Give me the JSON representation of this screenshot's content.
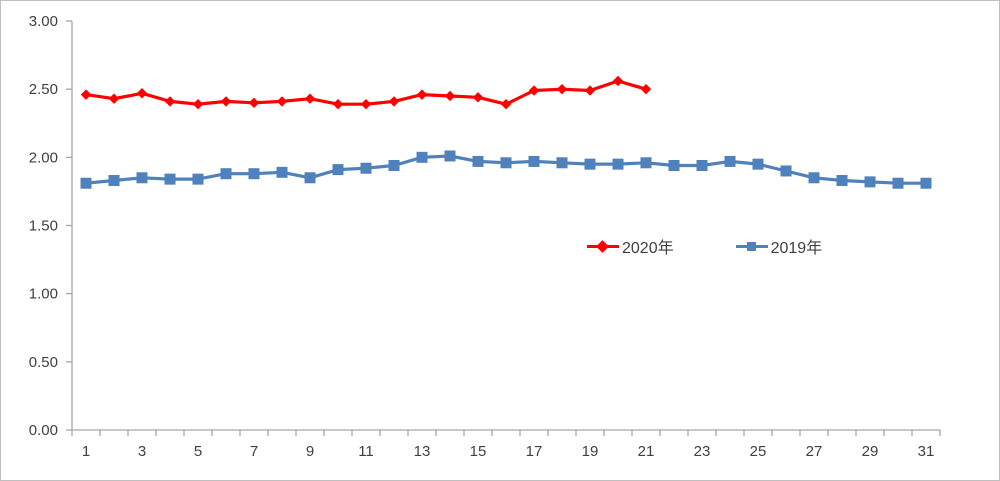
{
  "chart": {
    "title": "",
    "legend_items": [
      "2020年",
      "2019年"
    ]
  },
  "chart_data": {
    "type": "line",
    "x": [
      1,
      2,
      3,
      4,
      5,
      6,
      7,
      8,
      9,
      10,
      11,
      12,
      13,
      14,
      15,
      16,
      17,
      18,
      19,
      20,
      21,
      22,
      23,
      24,
      25,
      26,
      27,
      28,
      29,
      30,
      31
    ],
    "x_label_every": 2,
    "ylim": [
      0,
      3
    ],
    "y_tick_step": 0.5,
    "y_tick_labels": [
      "3.00",
      "2.50",
      "2.00",
      "1.50",
      "1.00",
      "0.50",
      "0.00"
    ],
    "grid": false,
    "legend_position": "inside-center-right",
    "series": [
      {
        "name": "2020年",
        "color": "#FF0000",
        "marker": "diamond",
        "values": [
          2.46,
          2.43,
          2.47,
          2.41,
          2.39,
          2.41,
          2.4,
          2.41,
          2.43,
          2.39,
          2.39,
          2.41,
          2.46,
          2.45,
          2.44,
          2.39,
          2.49,
          2.5,
          2.49,
          2.56,
          2.5
        ]
      },
      {
        "name": "2019年",
        "color": "#4F81BD",
        "marker": "square",
        "values": [
          1.81,
          1.83,
          1.85,
          1.84,
          1.84,
          1.88,
          1.88,
          1.89,
          1.85,
          1.91,
          1.92,
          1.94,
          2.0,
          2.01,
          1.97,
          1.96,
          1.97,
          1.96,
          1.95,
          1.95,
          1.96,
          1.94,
          1.94,
          1.97,
          1.95,
          1.9,
          1.85,
          1.83,
          1.82,
          1.81,
          1.81
        ]
      }
    ]
  },
  "colors": {
    "axis": "#A6A6A6",
    "tick": "#A6A6A6",
    "label_text": "#404040",
    "series_2020": "#FF0000",
    "series_2019": "#4F81BD",
    "background": "#FFFFFF",
    "border": "#BFBFBF"
  }
}
